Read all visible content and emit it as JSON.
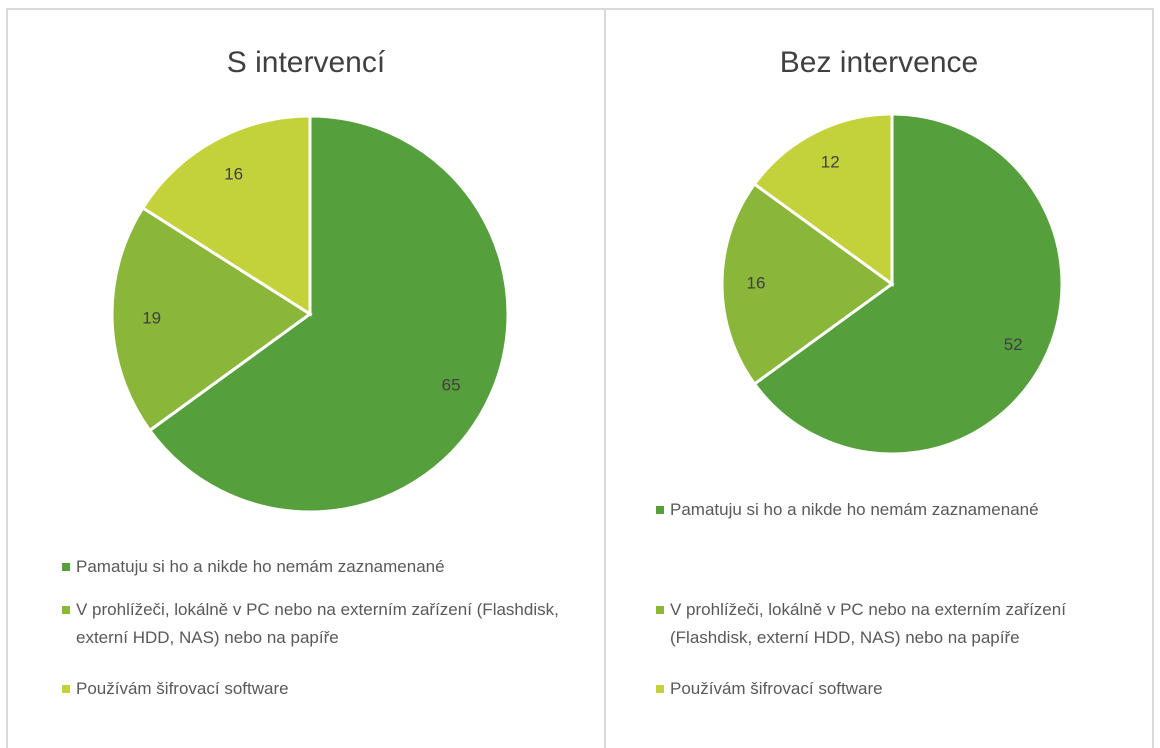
{
  "chart_data": [
    {
      "type": "pie",
      "title": "S intervencí",
      "categories": [
        "Pamatuju si ho a nikde ho nemám zaznamenané",
        "V prohlížeči, lokálně v PC nebo na externím zařízení (Flashdisk, externí HDD, NAS) nebo na papíře",
        "Používám šifrovací software"
      ],
      "values": [
        65,
        19,
        16
      ],
      "colors": [
        "#55a03c",
        "#8ab63a",
        "#c3d23b"
      ]
    },
    {
      "type": "pie",
      "title": "Bez intervence",
      "categories": [
        "Pamatuju si ho a nikde ho nemám zaznamenané",
        "V prohlížeči, lokálně v PC nebo na externím zařízení (Flashdisk, externí HDD, NAS) nebo na papíře",
        "Používám šifrovací software"
      ],
      "values": [
        52,
        16,
        12
      ],
      "colors": [
        "#55a03c",
        "#8ab63a",
        "#c3d23b"
      ]
    }
  ]
}
